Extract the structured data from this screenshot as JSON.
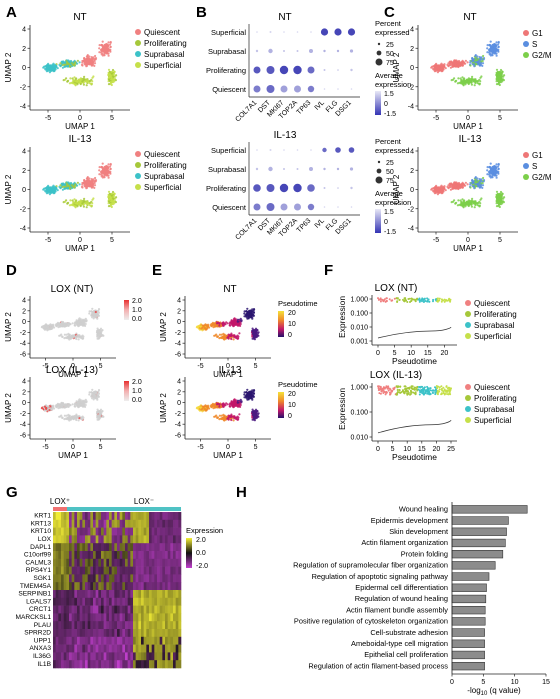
{
  "panel_letters": {
    "A": "A",
    "B": "B",
    "C": "C",
    "D": "D",
    "E": "E",
    "F": "F",
    "G": "G",
    "H": "H"
  },
  "colors": {
    "quiescent": "#f08080",
    "proliferating": "#a6c83a",
    "suprabasal": "#3cc2c8",
    "superficial": "#c6e04a",
    "g1": "#ee7777",
    "s": "#5a8ee0",
    "g2m": "#7ccf4a",
    "umap_grey": "#cfcfcf",
    "dot": "#3f3fb0",
    "bar": "#8c8c8c",
    "lox_pos_bar": "#f07070",
    "lox_neg_bar": "#4fc2c4"
  },
  "umap_axes": {
    "xlabel": "UMAP 1",
    "ylabel": "UMAP 2",
    "xticks": [
      "-5",
      "0",
      "5"
    ],
    "yticks_A": [
      "4",
      "2",
      "0",
      "-2",
      "-4"
    ],
    "yticks_D": [
      "4",
      "2",
      "0",
      "-2",
      "-4",
      "-6"
    ]
  },
  "panel_A": {
    "top_title": "NT",
    "bottom_title": "IL-13",
    "legend_top": [
      "Quiescent",
      "Proliferating",
      "Suprabasal",
      "Superficial"
    ],
    "legend_bottom": [
      "Quiescent",
      "Proliferating",
      "Suprabasal",
      "Superficial"
    ]
  },
  "panel_B": {
    "top_title": "NT",
    "bottom_title": "IL-13",
    "rows": [
      "Superficial",
      "Suprabasal",
      "Proliferating",
      "Quiescent"
    ],
    "genes": [
      "COL7A1",
      "DST",
      "MKI67",
      "TOP2A",
      "TP63",
      "IVL",
      "FLG",
      "DSG1"
    ],
    "pct_label_1": "Percent",
    "pct_label_2": "expressed",
    "pct_values": [
      "25",
      "50",
      "75"
    ],
    "avg_label_1": "Average",
    "avg_label_2": "expression",
    "avg_values": [
      "1.5",
      "0",
      "-1.5"
    ]
  },
  "panel_C": {
    "top_title": "NT",
    "bottom_title": "IL-13",
    "legend": [
      "G1",
      "S",
      "G2/M"
    ]
  },
  "panel_D": {
    "top_title": "LOX (NT)",
    "bottom_title": "LOX (IL-13)",
    "scale": [
      "2.0",
      "1.0",
      "0.0"
    ]
  },
  "panel_E": {
    "top_title": "NT",
    "bottom_title": "IL-13",
    "legend_title": "Pseudotime",
    "scale": [
      "20",
      "10",
      "0"
    ]
  },
  "panel_F": {
    "top_title": "LOX (NT)",
    "bottom_title": "LOX (IL-13)",
    "ylabel": "Expression",
    "xlabel": "Pseudotime",
    "top_yticks": [
      "1.000",
      "0.100",
      "0.010",
      "0.001"
    ],
    "top_xticks": [
      "0",
      "5",
      "10",
      "15",
      "20"
    ],
    "bottom_yticks": [
      "1.000",
      "0.100",
      "0.010"
    ],
    "bottom_xticks": [
      "0",
      "5",
      "10",
      "15",
      "20",
      "25"
    ],
    "legend": [
      "Quiescent",
      "Proliferating",
      "Suprabasal",
      "Superficial"
    ]
  },
  "panel_G": {
    "group_pos": "LOX⁺",
    "group_neg": "LOX⁻",
    "genes": [
      "KRT1",
      "KRT13",
      "KRT10",
      "LOX",
      "DAPL1",
      "C10orf99",
      "CALML3",
      "RPS4Y1",
      "SGK1",
      "TMEM45A",
      "SERPINB1",
      "LGALS7",
      "CRCT1",
      "MARCKSL1",
      "PLAU",
      "SPRR2D",
      "UPP1",
      "ANXA3",
      "IL36G",
      "IL1B"
    ],
    "legend_title": "Expression",
    "scale": [
      "2.0",
      "0.0",
      "-2.0"
    ]
  },
  "chart_data": {
    "type": "bar",
    "orientation": "horizontal",
    "categories": [
      "Wound healing",
      "Epidermis development",
      "Skin development",
      "Actin filament organization",
      "Protein folding",
      "Regulation of supramolecular fiber organization",
      "Regulation of apoptotic signaling pathway",
      "Epidermal cell differentiation",
      "Regulation of wound healing",
      "Actin filament bundle assembly",
      "Positive regulation of cytoskeleton organization",
      "Cell-substrate adhesion",
      "Ameboidal-type cell migration",
      "Epithelial cell proliferation",
      "Regulation of actin filament-based process"
    ],
    "values": [
      12.0,
      9.0,
      8.7,
      8.5,
      8.1,
      6.9,
      5.9,
      5.5,
      5.4,
      5.3,
      5.3,
      5.2,
      5.2,
      5.2,
      5.2
    ],
    "xlim": [
      0,
      15
    ],
    "xticks": [
      "0",
      "5",
      "10",
      "15"
    ],
    "xlabel_pre": "-log",
    "xlabel_sub": "10",
    "xlabel_post": " (q value)"
  }
}
